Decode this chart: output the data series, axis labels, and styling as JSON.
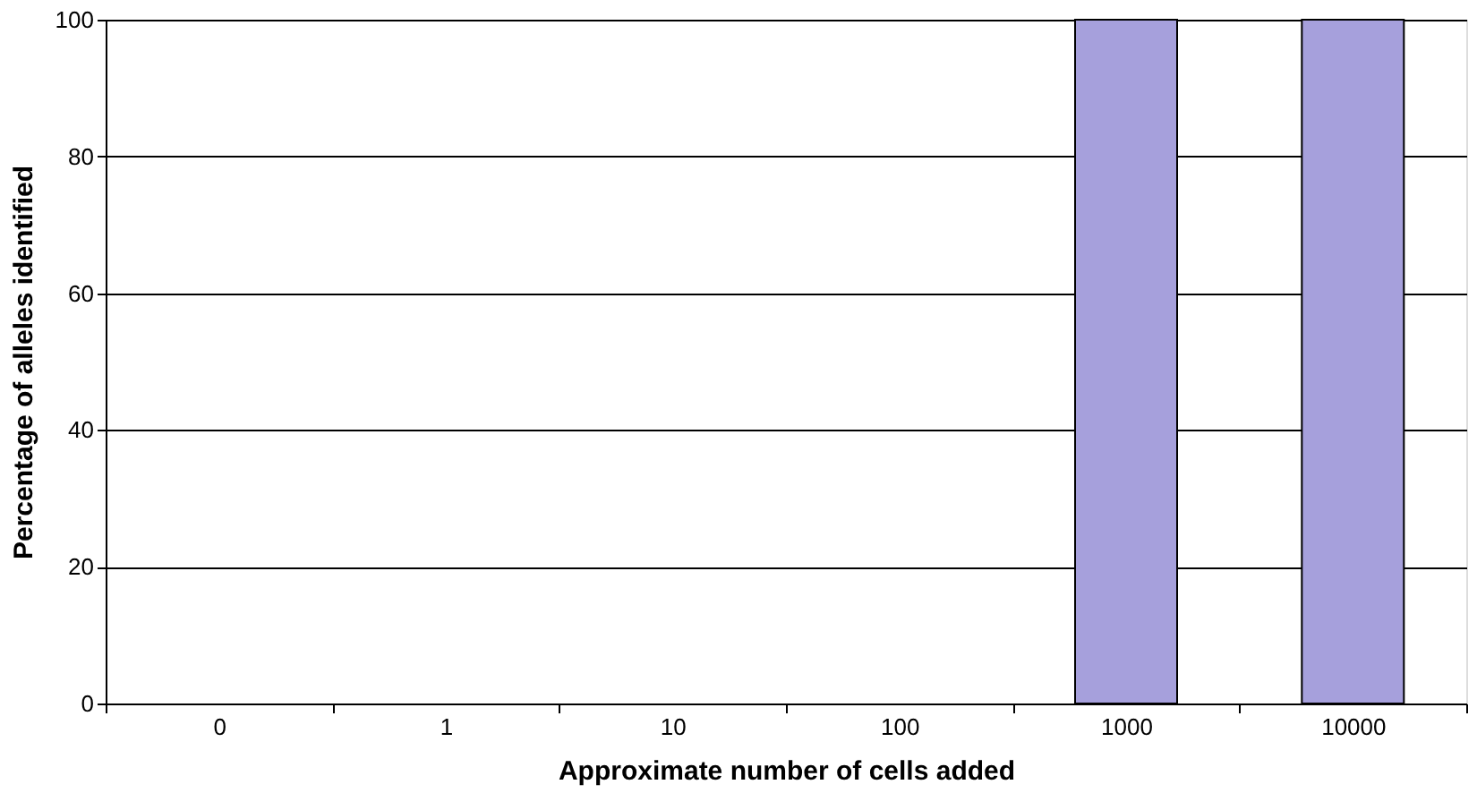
{
  "chart_data": {
    "type": "bar",
    "xlabel": "Approximate number of cells added",
    "ylabel": "Percentage of alleles identified",
    "categories": [
      "0",
      "1",
      "10",
      "100",
      "1000",
      "10000"
    ],
    "values": [
      0,
      0,
      0,
      0,
      100,
      100
    ],
    "color": "#a6a0dc",
    "ylim": [
      0,
      100
    ],
    "yticks": [
      0,
      20,
      40,
      60,
      80,
      100
    ],
    "grid": "y"
  }
}
